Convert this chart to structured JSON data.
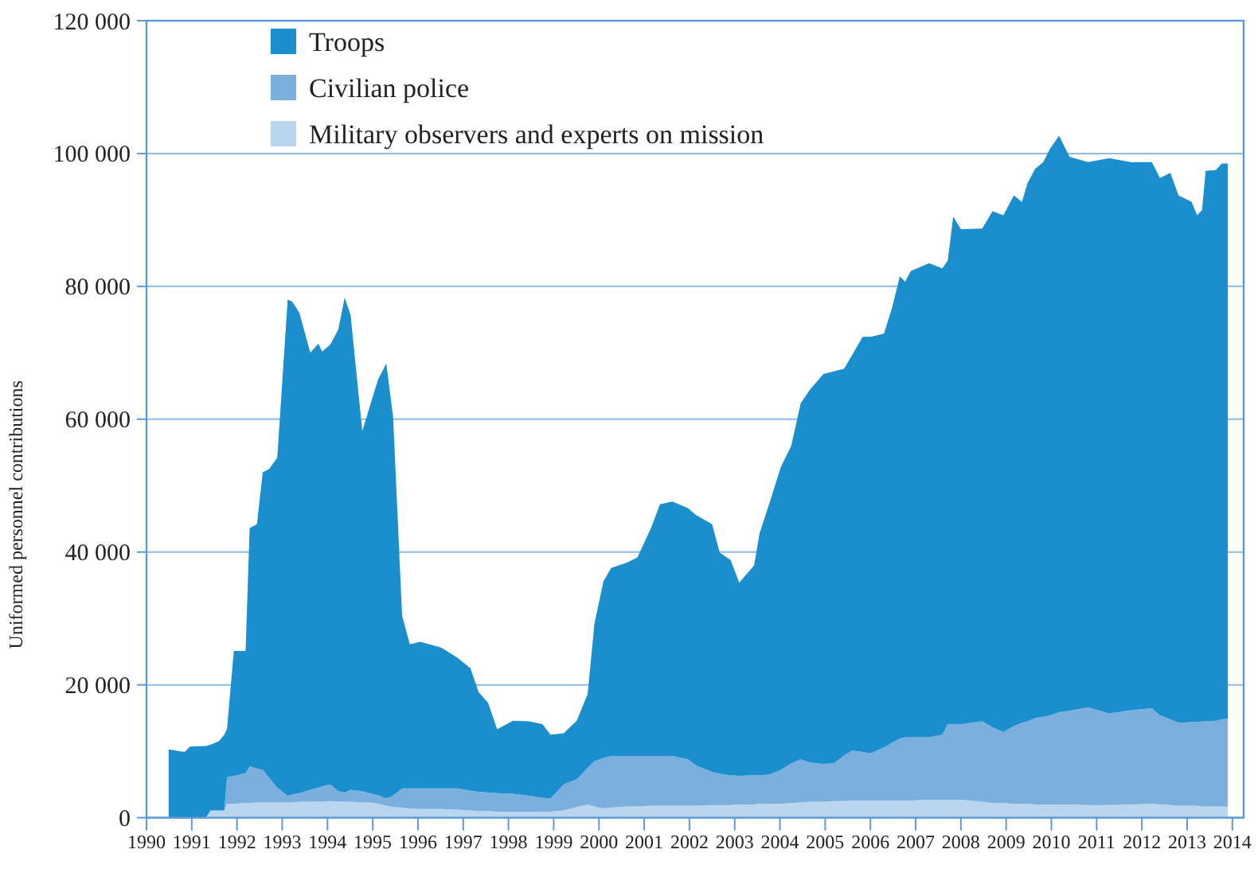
{
  "chart_data": {
    "type": "area",
    "stacked": true,
    "ylabel": "Uniformed personnel contributions",
    "x": [
      1990.49,
      1990.84,
      1990.96,
      1991.31,
      1991.42,
      1991.6,
      1991.72,
      1991.78,
      1991.93,
      1992.19,
      1992.28,
      1992.44,
      1992.57,
      1992.71,
      1992.89,
      1993.12,
      1993.22,
      1993.38,
      1993.62,
      1993.8,
      1993.88,
      1994.06,
      1994.24,
      1994.38,
      1994.51,
      1994.77,
      1994.92,
      1995.12,
      1995.3,
      1995.45,
      1995.65,
      1995.82,
      1996.05,
      1996.52,
      1996.87,
      1997.16,
      1997.34,
      1997.55,
      1997.75,
      1998.1,
      1998.45,
      1998.75,
      1998.93,
      1999.22,
      1999.51,
      1999.75,
      1999.9,
      2000.1,
      2000.27,
      2000.62,
      2000.85,
      2001.15,
      2001.35,
      2001.62,
      2001.97,
      2002.14,
      2002.5,
      2002.67,
      2002.91,
      2003.1,
      2003.43,
      2003.55,
      2003.78,
      2004.02,
      2004.25,
      2004.46,
      2004.66,
      2004.96,
      2005.19,
      2005.42,
      2005.6,
      2005.83,
      2006.01,
      2006.3,
      2006.48,
      2006.65,
      2006.77,
      2006.89,
      2007.3,
      2007.59,
      2007.71,
      2007.83,
      2008.0,
      2008.47,
      2008.7,
      2008.94,
      2009.17,
      2009.35,
      2009.47,
      2009.64,
      2009.82,
      2009.97,
      2010.17,
      2010.4,
      2010.81,
      2011.28,
      2011.75,
      2012.22,
      2012.4,
      2012.63,
      2012.81,
      2013.1,
      2013.22,
      2013.33,
      2013.41,
      2013.63,
      2013.77,
      2013.9
    ],
    "series": [
      {
        "name": "Military observers and experts on mission",
        "color": "#bad6ef",
        "values": [
          0,
          0,
          0,
          0,
          1100,
          1100,
          1100,
          2100,
          2100,
          2200,
          2200,
          2300,
          2300,
          2300,
          2300,
          2300,
          2300,
          2400,
          2400,
          2400,
          2400,
          2500,
          2400,
          2400,
          2400,
          2300,
          2300,
          2100,
          1800,
          1600,
          1500,
          1400,
          1300,
          1300,
          1200,
          1100,
          1000,
          1000,
          900,
          900,
          900,
          900,
          900,
          1100,
          1600,
          2000,
          1700,
          1400,
          1500,
          1700,
          1700,
          1800,
          1800,
          1800,
          1800,
          1800,
          1900,
          1900,
          1900,
          2000,
          2000,
          2100,
          2100,
          2100,
          2200,
          2300,
          2400,
          2400,
          2500,
          2500,
          2600,
          2600,
          2600,
          2600,
          2600,
          2600,
          2600,
          2600,
          2700,
          2700,
          2700,
          2700,
          2700,
          2400,
          2200,
          2200,
          2100,
          2100,
          2100,
          2000,
          2000,
          2000,
          2000,
          2000,
          1900,
          1900,
          2000,
          2100,
          2000,
          1900,
          1800,
          1800,
          1800,
          1700,
          1700,
          1700,
          1700,
          1700
        ]
      },
      {
        "name": "Civilian police",
        "color": "#7bafdd",
        "values": [
          0,
          0,
          0,
          0,
          0,
          0,
          0,
          4000,
          4200,
          4500,
          5500,
          5100,
          4900,
          3700,
          2200,
          1000,
          1200,
          1300,
          1800,
          2100,
          2300,
          2500,
          1600,
          1400,
          1800,
          1700,
          1400,
          1300,
          1100,
          1700,
          2900,
          3000,
          3100,
          3100,
          3200,
          3000,
          2900,
          2800,
          2800,
          2700,
          2400,
          2100,
          2000,
          3900,
          4200,
          5500,
          6800,
          7600,
          7800,
          7600,
          7600,
          7500,
          7500,
          7500,
          7000,
          6100,
          5000,
          4700,
          4500,
          4300,
          4400,
          4300,
          4400,
          5100,
          6000,
          6500,
          5900,
          5700,
          5700,
          6900,
          7500,
          7300,
          7100,
          8000,
          8700,
          9300,
          9500,
          9500,
          9400,
          9800,
          11400,
          11400,
          11400,
          12100,
          11400,
          10700,
          11700,
          12200,
          12400,
          13000,
          13200,
          13400,
          13900,
          14100,
          14700,
          13800,
          14200,
          14400,
          13400,
          12900,
          12500,
          12600,
          12600,
          12800,
          12800,
          12900,
          13100,
          13200
        ]
      },
      {
        "name": "Troops",
        "color": "#1b8ecd",
        "values": [
          10300,
          9900,
          10700,
          10800,
          9900,
          10400,
          11400,
          7300,
          18800,
          18400,
          35900,
          36800,
          44800,
          46500,
          49700,
          74700,
          74200,
          72300,
          65800,
          66900,
          65500,
          66200,
          69500,
          74500,
          71500,
          54200,
          57900,
          62600,
          65500,
          57100,
          26000,
          21700,
          22100,
          21200,
          19700,
          18400,
          15000,
          13500,
          9600,
          11000,
          11200,
          11100,
          9600,
          7700,
          8800,
          11100,
          20700,
          26600,
          28300,
          29100,
          29900,
          34300,
          37900,
          38300,
          37800,
          37700,
          37300,
          33300,
          32400,
          29100,
          31600,
          36400,
          41100,
          45600,
          47800,
          53600,
          56100,
          58700,
          59000,
          58200,
          59600,
          62500,
          62700,
          62300,
          65500,
          69600,
          68600,
          70200,
          71400,
          70200,
          69800,
          76400,
          74500,
          74200,
          77700,
          77800,
          79900,
          78400,
          81000,
          82700,
          83500,
          85300,
          86800,
          83400,
          82100,
          83600,
          82500,
          82200,
          80900,
          82300,
          79400,
          78300,
          76300,
          77000,
          82900,
          82900,
          83700,
          83600
        ]
      }
    ],
    "xlim": [
      1990,
      2014.25
    ],
    "xticks": [
      1990,
      1991,
      1992,
      1993,
      1994,
      1995,
      1996,
      1997,
      1998,
      1999,
      2000,
      2001,
      2002,
      2003,
      2004,
      2005,
      2006,
      2007,
      2008,
      2009,
      2010,
      2011,
      2012,
      2013,
      2014
    ],
    "ylim": [
      0,
      120000
    ],
    "yticks": [
      0,
      {
        "value": 20000,
        "label": "20 000"
      },
      {
        "value": 40000,
        "label": "40 000"
      },
      {
        "value": 60000,
        "label": "60 000"
      },
      {
        "value": 80000,
        "label": "80 000"
      },
      {
        "value": 100000,
        "label": "100 000"
      },
      {
        "value": 120000,
        "label": "120 000"
      }
    ],
    "grid": "y",
    "legend": "top left"
  }
}
